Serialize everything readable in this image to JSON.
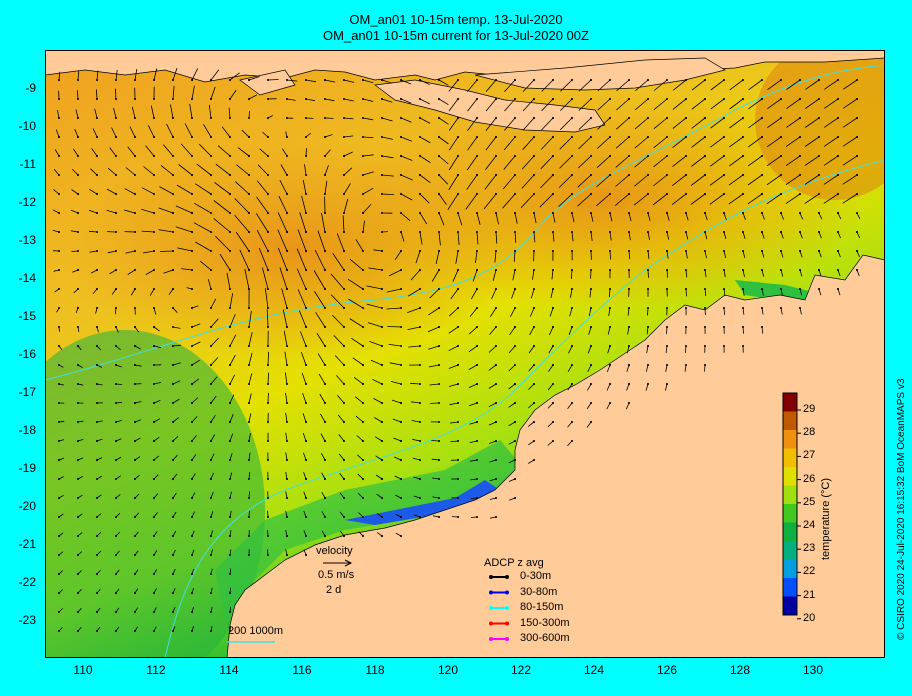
{
  "title_line1": "OM_an01 10-15m temp. 13-Jul-2020",
  "title_line2": "OM_an01 10-15m current for 13-Jul-2020 00Z",
  "credit": "© CSIRO 2020   24-Jul-2020 16:15:32 BoM OceanMAPS v3",
  "map": {
    "lon_range": [
      109,
      132
    ],
    "lat_range": [
      -24,
      -8
    ],
    "lon_ticks": [
      "110",
      "112",
      "114",
      "116",
      "118",
      "120",
      "122",
      "124",
      "126",
      "128",
      "130"
    ],
    "lat_ticks": [
      "-9",
      "-10",
      "-11",
      "-12",
      "-13",
      "-14",
      "-15",
      "-16",
      "-17",
      "-18",
      "-19",
      "-20",
      "-21",
      "-22",
      "-23"
    ],
    "land_color": "#ffcc99",
    "colors": {
      "warm": "#f0a020",
      "mid": "#e8d800",
      "cool": "#20c030",
      "cold": "#1e5ae8"
    }
  },
  "colorbar": {
    "label": "temperature (°C)",
    "ticks": [
      "29",
      "28",
      "27",
      "26",
      "25",
      "24",
      "23",
      "22",
      "21",
      "20"
    ],
    "range": [
      20,
      29.5
    ],
    "stops": [
      "#800000",
      "#c05a00",
      "#f09010",
      "#f0c000",
      "#e0e000",
      "#a0e010",
      "#40c820",
      "#10b040",
      "#00b080",
      "#00a0e0",
      "#0050ff",
      "#0000a0"
    ]
  },
  "velocity_legend": {
    "label": "velocity",
    "speed": "0.5 m/s",
    "duration": "2 d"
  },
  "adcp_legend": {
    "title": "ADCP z avg",
    "items": [
      {
        "label": "0-30m",
        "color": "#000000"
      },
      {
        "label": "30-80m",
        "color": "#0000ff"
      },
      {
        "label": "80-150m",
        "color": "#00ffff"
      },
      {
        "label": "150-300m",
        "color": "#ff0000"
      },
      {
        "label": "300-600m",
        "color": "#ff00ff"
      }
    ]
  },
  "isobath_legend": {
    "label": "200  1000m"
  }
}
